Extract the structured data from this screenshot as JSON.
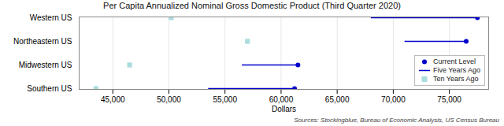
{
  "chart_data": {
    "type": "dumbbell",
    "title": "Per Capita Annualized Nominal Gross Domestic Product (Third Quarter 2020)",
    "xlabel": "Dollars",
    "source": "Sources: Stockingblue, Bureau of Economic Analysis, US Census Bureau",
    "categories": [
      "Western US",
      "Northeastern US",
      "Midwestern US",
      "Southern US"
    ],
    "series": [
      {
        "name": "Current Level",
        "color": "#0000cc",
        "marker": "circle",
        "values": [
          77500,
          76500,
          61500,
          61200
        ]
      },
      {
        "name": "Five Years Ago",
        "color": "#0000cc",
        "type": "segment",
        "values": [
          68000,
          71000,
          56500,
          53500
        ]
      },
      {
        "name": "Ten Years Ago",
        "color": "#aadddd",
        "marker": "square",
        "values": [
          50200,
          57000,
          46500,
          43500
        ]
      }
    ],
    "xlim": [
      42000,
      78500
    ],
    "xticks": [
      {
        "value": 45000,
        "label": "45,000"
      },
      {
        "value": 50000,
        "label": "50,000"
      },
      {
        "value": 55000,
        "label": "55,000"
      },
      {
        "value": 60000,
        "label": "60,000"
      },
      {
        "value": 65000,
        "label": "65,000"
      },
      {
        "value": 70000,
        "label": "70,000"
      },
      {
        "value": 75000,
        "label": "75,000"
      }
    ],
    "grid": "x",
    "legend": "lower right"
  }
}
